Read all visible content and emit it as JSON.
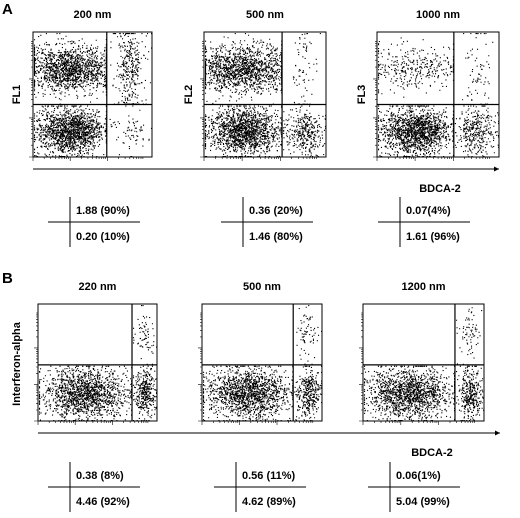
{
  "chart_data": [
    {
      "type": "scatter",
      "panel": "A",
      "xlabel": "BDCA-2",
      "plots": [
        {
          "title": "200 nm",
          "ylabel": "FL1",
          "upper_right": "1.88 (90%)",
          "lower_right": "0.20 (10%)",
          "populations": [
            {
              "region": "upper-left",
              "density": "high"
            },
            {
              "region": "lower-left",
              "density": "high"
            },
            {
              "region": "upper-right",
              "density": "medium"
            },
            {
              "region": "lower-right",
              "density": "low"
            }
          ]
        },
        {
          "title": "500 nm",
          "ylabel": "FL2",
          "upper_right": "0.36 (20%)",
          "lower_right": "1.46 (80%)",
          "populations": [
            {
              "region": "upper-left",
              "density": "high"
            },
            {
              "region": "lower-left",
              "density": "high"
            },
            {
              "region": "upper-right",
              "density": "low"
            },
            {
              "region": "lower-right",
              "density": "medium"
            }
          ]
        },
        {
          "title": "1000 nm",
          "ylabel": "FL3",
          "upper_right": "0.07(4%)",
          "lower_right": "1.61 (96%)",
          "populations": [
            {
              "region": "upper-left",
              "density": "medium"
            },
            {
              "region": "lower-left",
              "density": "high"
            },
            {
              "region": "upper-right",
              "density": "low"
            },
            {
              "region": "lower-right",
              "density": "medium"
            }
          ]
        }
      ]
    },
    {
      "type": "scatter",
      "panel": "B",
      "xlabel": "BDCA-2",
      "ylabel": "Interferon-alpha",
      "plots": [
        {
          "title": "220 nm",
          "upper_right": "0.38 (8%)",
          "lower_right": "4.46 (92%)",
          "populations": [
            {
              "region": "lower-left",
              "density": "high"
            },
            {
              "region": "lower-right",
              "density": "medium"
            },
            {
              "region": "upper-right",
              "density": "low"
            }
          ]
        },
        {
          "title": "500 nm",
          "upper_right": "0.56 (11%)",
          "lower_right": "4.62 (89%)",
          "populations": [
            {
              "region": "lower-left",
              "density": "high"
            },
            {
              "region": "lower-right",
              "density": "medium"
            },
            {
              "region": "upper-right",
              "density": "low"
            }
          ]
        },
        {
          "title": "1200 nm",
          "upper_right": "0.06(1%)",
          "lower_right": "5.04 (99%)",
          "populations": [
            {
              "region": "lower-left",
              "density": "high"
            },
            {
              "region": "lower-right",
              "density": "medium"
            },
            {
              "region": "upper-right",
              "density": "low"
            }
          ]
        }
      ]
    }
  ]
}
